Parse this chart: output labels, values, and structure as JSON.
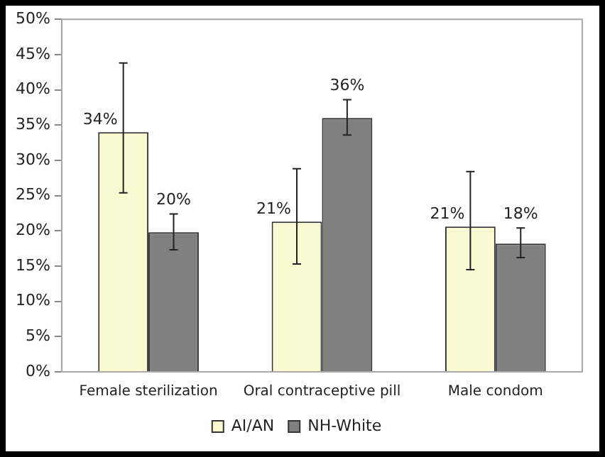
{
  "chart_data": {
    "type": "bar",
    "categories": [
      "Female sterilization",
      "Oral contraceptive pill",
      "Male condom"
    ],
    "series": [
      {
        "name": "AI/AN",
        "color": "#fafad2",
        "values": [
          34,
          21.3,
          20.6
        ],
        "errors": [
          [
            25.4,
            43.8
          ],
          [
            15.3,
            28.8
          ],
          [
            14.5,
            28.4
          ]
        ],
        "value_labels": [
          "34%",
          "21%",
          "21%"
        ]
      },
      {
        "name": "NH-White",
        "color": "#808080",
        "values": [
          19.8,
          36,
          18.2
        ],
        "errors": [
          [
            17.3,
            22.4
          ],
          [
            33.6,
            38.6
          ],
          [
            16.2,
            20.4
          ]
        ],
        "value_labels": [
          "20%",
          "36%",
          "18%"
        ]
      }
    ],
    "ylim": [
      0,
      50
    ],
    "yticks": [
      {
        "value": 0,
        "label": "0%"
      },
      {
        "value": 5,
        "label": "5%"
      },
      {
        "value": 10,
        "label": "10%"
      },
      {
        "value": 15,
        "label": "15%"
      },
      {
        "value": 20,
        "label": "20%"
      },
      {
        "value": 25,
        "label": "25%"
      },
      {
        "value": 30,
        "label": "30%"
      },
      {
        "value": 35,
        "label": "35%"
      },
      {
        "value": 40,
        "label": "40%"
      },
      {
        "value": 45,
        "label": "45%"
      },
      {
        "value": 50,
        "label": "50%"
      }
    ],
    "grid": false,
    "legend": "bottom"
  }
}
